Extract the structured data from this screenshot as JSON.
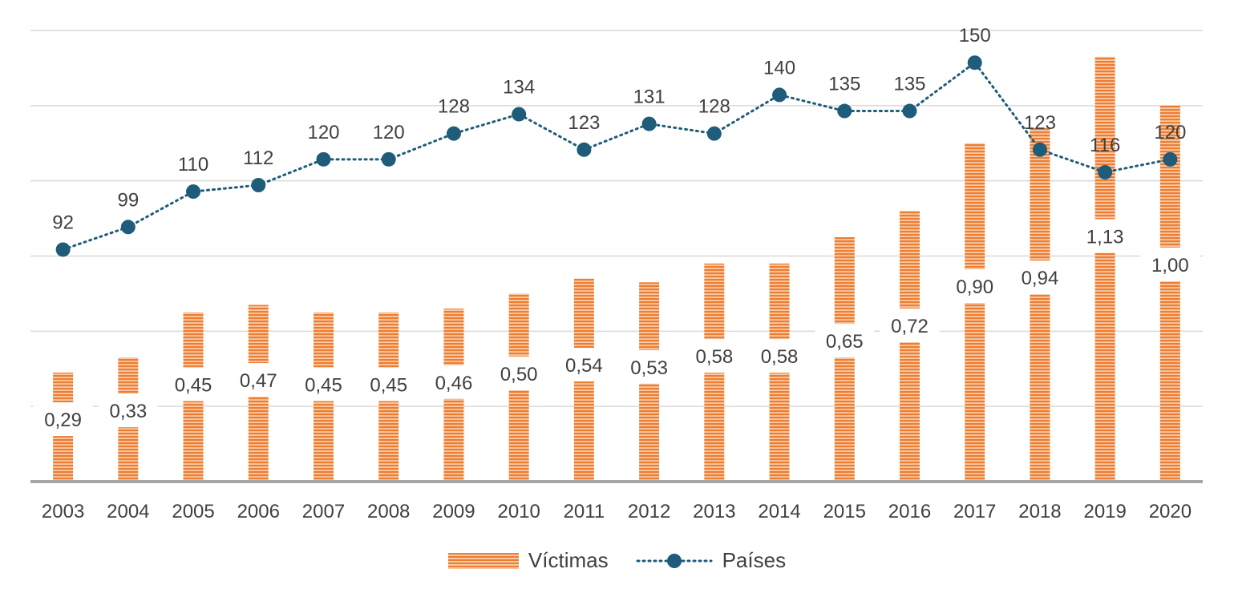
{
  "chart_data": {
    "type": "bar",
    "categories": [
      "2003",
      "2004",
      "2005",
      "2006",
      "2007",
      "2008",
      "2009",
      "2010",
      "2011",
      "2012",
      "2013",
      "2014",
      "2015",
      "2016",
      "2017",
      "2018",
      "2019",
      "2020"
    ],
    "series": [
      {
        "name": "Víctimas",
        "type": "bar",
        "axis": "left",
        "values": [
          0.29,
          0.33,
          0.45,
          0.47,
          0.45,
          0.45,
          0.46,
          0.5,
          0.54,
          0.53,
          0.58,
          0.58,
          0.65,
          0.72,
          0.9,
          0.94,
          1.13,
          1.0
        ],
        "labels": [
          "0,29",
          "0,33",
          "0,45",
          "0,47",
          "0,45",
          "0,45",
          "0,46",
          "0,50",
          "0,54",
          "0,53",
          "0,58",
          "0,58",
          "0,65",
          "0,72",
          "0,90",
          "0,94",
          "1,13",
          "1,00"
        ]
      },
      {
        "name": "Países",
        "type": "line",
        "axis": "right",
        "values": [
          92,
          99,
          110,
          112,
          120,
          120,
          128,
          134,
          123,
          131,
          128,
          140,
          135,
          135,
          150,
          123,
          116,
          120
        ],
        "labels": [
          "92",
          "99",
          "110",
          "112",
          "120",
          "120",
          "128",
          "134",
          "123",
          "131",
          "128",
          "140",
          "135",
          "135",
          "150",
          "123",
          "116",
          "120"
        ]
      }
    ],
    "y_left_lim": [
      0,
      1.2
    ],
    "y_right_lim": [
      20,
      160
    ],
    "grid": true,
    "legend_position": "bottom",
    "colors": {
      "bar": "#ED7D31",
      "bar_light": "#F8C9A6",
      "line": "#1F5C7A",
      "grid": "#D9D9D9",
      "axis": "#A6A6A6",
      "text": "#404040"
    }
  }
}
